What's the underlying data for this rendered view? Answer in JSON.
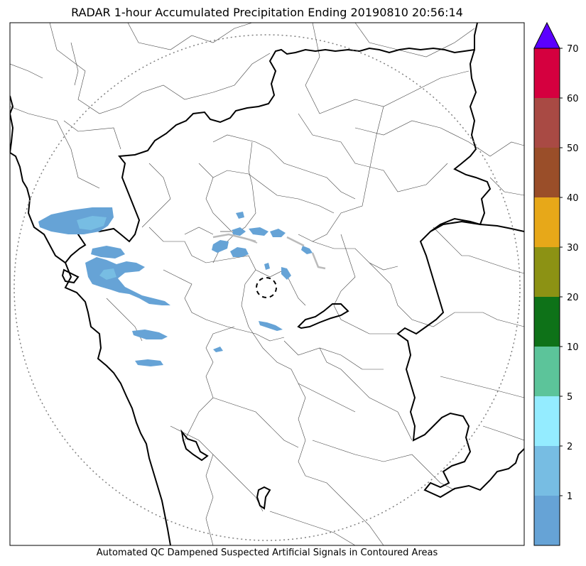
{
  "title": "RADAR 1-hour Accumulated Precipitation Ending 20190810 20:56:14",
  "footer_note": "Automated QC Dampened Suspected Artificial Signals in Contoured Areas",
  "colorbar": {
    "extend_color": "#5b00ff",
    "bins": [
      {
        "color": "#66a3d6"
      },
      {
        "color": "#77bde3"
      },
      {
        "color": "#94ecff"
      },
      {
        "color": "#5cc49a"
      },
      {
        "color": "#0e7218"
      },
      {
        "color": "#8c9214"
      },
      {
        "color": "#e7a819"
      },
      {
        "color": "#9a4e29"
      },
      {
        "color": "#a94a44"
      },
      {
        "color": "#d5003f"
      }
    ],
    "tick_labels": [
      "1",
      "2",
      "5",
      "10",
      "20",
      "30",
      "40",
      "50",
      "60",
      "70"
    ]
  },
  "map": {
    "border_color": "#000000",
    "district_color": "#444444",
    "range_ring_color": "#808080",
    "precip_light": "#66a3d6",
    "precip_lighter": "#77bde3",
    "artifact_color": "#bbbbbb"
  }
}
